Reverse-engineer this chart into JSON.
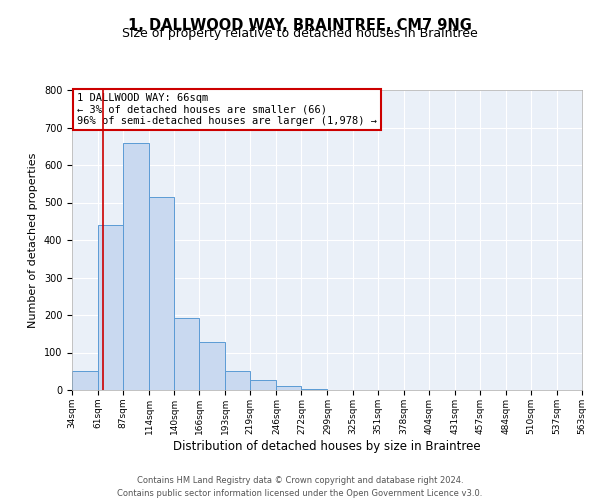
{
  "title": "1, DALLWOOD WAY, BRAINTREE, CM7 9NG",
  "subtitle": "Size of property relative to detached houses in Braintree",
  "xlabel": "Distribution of detached houses by size in Braintree",
  "ylabel": "Number of detached properties",
  "bin_edges": [
    34,
    61,
    87,
    114,
    140,
    166,
    193,
    219,
    246,
    272,
    299,
    325,
    351,
    378,
    404,
    431,
    457,
    484,
    510,
    537,
    563
  ],
  "bin_counts": [
    50,
    440,
    660,
    515,
    193,
    127,
    50,
    27,
    10,
    3,
    0,
    0,
    0,
    0,
    0,
    0,
    0,
    0,
    0,
    0
  ],
  "bar_facecolor": "#c9d9f0",
  "bar_edgecolor": "#5b9bd5",
  "property_value": 66,
  "vline_color": "#cc0000",
  "annotation_box_edgecolor": "#cc0000",
  "annotation_line1": "1 DALLWOOD WAY: 66sqm",
  "annotation_line2": "← 3% of detached houses are smaller (66)",
  "annotation_line3": "96% of semi-detached houses are larger (1,978) →",
  "ylim": [
    0,
    800
  ],
  "yticks": [
    0,
    100,
    200,
    300,
    400,
    500,
    600,
    700,
    800
  ],
  "background_color": "#eaf0f8",
  "grid_color": "#ffffff",
  "tick_labels": [
    "34sqm",
    "61sqm",
    "87sqm",
    "114sqm",
    "140sqm",
    "166sqm",
    "193sqm",
    "219sqm",
    "246sqm",
    "272sqm",
    "299sqm",
    "325sqm",
    "351sqm",
    "378sqm",
    "404sqm",
    "431sqm",
    "457sqm",
    "484sqm",
    "510sqm",
    "537sqm",
    "563sqm"
  ],
  "footer_line1": "Contains HM Land Registry data © Crown copyright and database right 2024.",
  "footer_line2": "Contains public sector information licensed under the Open Government Licence v3.0.",
  "title_fontsize": 10.5,
  "subtitle_fontsize": 9,
  "xlabel_fontsize": 8.5,
  "ylabel_fontsize": 8,
  "tick_fontsize": 6.5,
  "annotation_fontsize": 7.5,
  "footer_fontsize": 6
}
